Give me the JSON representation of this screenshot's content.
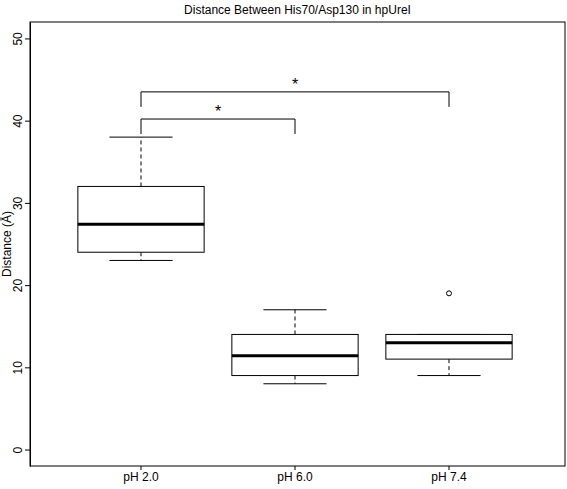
{
  "chart_data": {
    "type": "box",
    "title": "Distance Between His70/Asp130 in hpUreI",
    "y_label": "Distance (Å)",
    "categories": [
      "pH 2.0",
      "pH 6.0",
      "pH 7.4"
    ],
    "boxes": [
      {
        "whisker_low": 23,
        "q1": 24,
        "median": 27.4,
        "q3": 32,
        "whisker_high": 38
      },
      {
        "whisker_low": 8,
        "q1": 9,
        "median": 11.4,
        "q3": 14,
        "whisker_high": 17
      },
      {
        "whisker_low": 9,
        "q1": 11,
        "median": 13,
        "q3": 14,
        "whisker_high": 14,
        "outliers": [
          19
        ]
      }
    ],
    "annotations": [
      {
        "text": "*",
        "from": 0,
        "to": 1,
        "y": 40.2
      },
      {
        "text": "*",
        "from": 0,
        "to": 2,
        "y": 43.5
      }
    ],
    "color": "#000000",
    "ylim": [
      -2,
      52
    ],
    "yticks": [
      0,
      10,
      20,
      30,
      40,
      50
    ],
    "grid": false
  }
}
